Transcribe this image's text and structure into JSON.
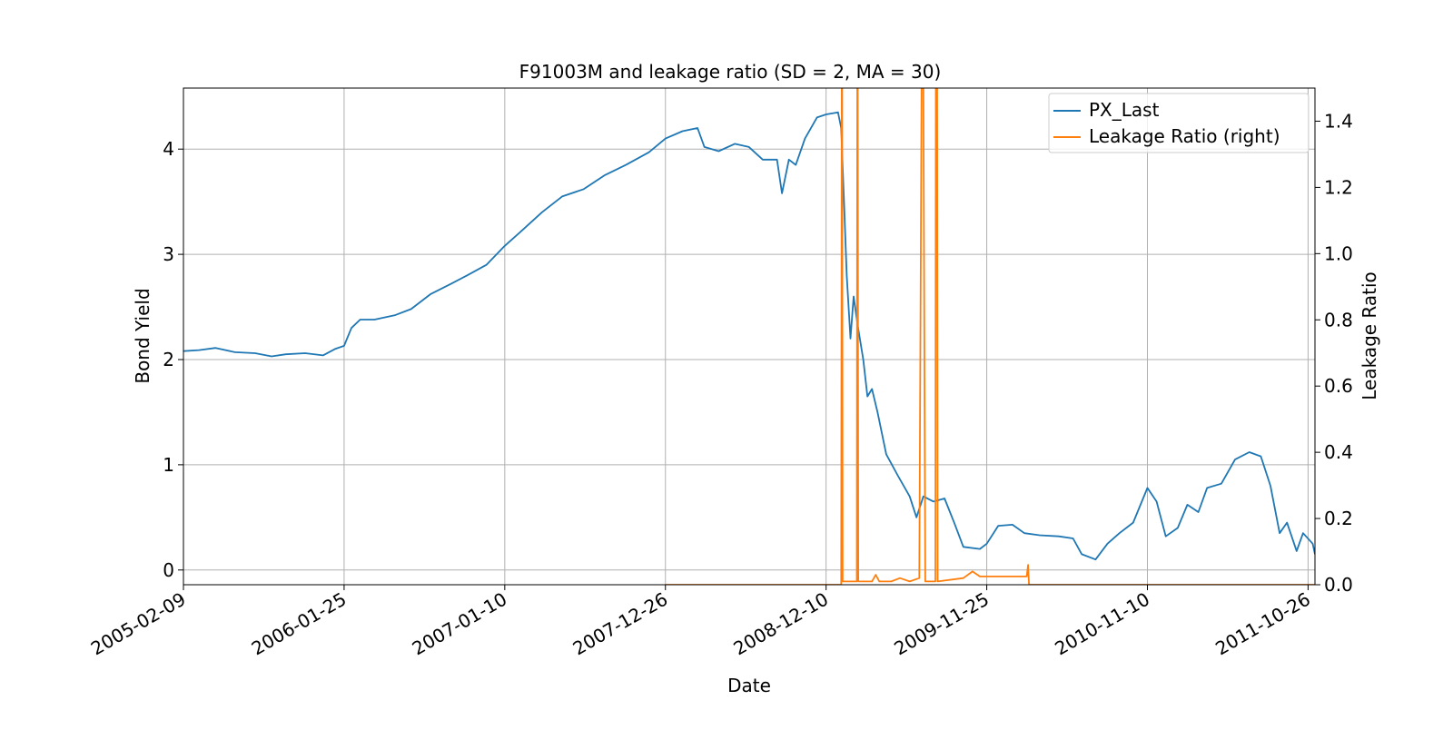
{
  "chart_data": {
    "type": "line",
    "title": "F91003M and leakage ratio (SD = 2, MA = 30)",
    "xlabel": "Date",
    "ylabel": "Bond Yield",
    "ylabel_right": "Leakage Ratio",
    "xlim": [
      "2005-02-09",
      "2011-11-10"
    ],
    "ylim": [
      -0.14,
      4.58
    ],
    "ylim_right": [
      0,
      1.5
    ],
    "x_ticks": [
      "2005-02-09",
      "2006-01-25",
      "2007-01-10",
      "2007-12-26",
      "2008-12-10",
      "2009-11-25",
      "2010-11-10",
      "2011-10-26"
    ],
    "y_ticks": [
      "0",
      "1",
      "2",
      "3",
      "4"
    ],
    "y_ticks_right": [
      "0.0",
      "0.2",
      "0.4",
      "0.6",
      "0.8",
      "1.0",
      "1.2",
      "1.4"
    ],
    "grid": true,
    "legend_position": "top-right",
    "series": [
      {
        "name": "PX_Last",
        "axis": "left",
        "color": "#1f77b4",
        "points": [
          [
            "2005-02-09",
            2.08
          ],
          [
            "2005-03-15",
            2.09
          ],
          [
            "2005-04-20",
            2.11
          ],
          [
            "2005-06-01",
            2.07
          ],
          [
            "2005-07-15",
            2.06
          ],
          [
            "2005-08-20",
            2.03
          ],
          [
            "2005-09-20",
            2.05
          ],
          [
            "2005-11-01",
            2.06
          ],
          [
            "2005-12-10",
            2.04
          ],
          [
            "2006-01-05",
            2.1
          ],
          [
            "2006-01-25",
            2.13
          ],
          [
            "2006-02-10",
            2.3
          ],
          [
            "2006-03-01",
            2.38
          ],
          [
            "2006-04-01",
            2.38
          ],
          [
            "2006-05-15",
            2.42
          ],
          [
            "2006-06-20",
            2.48
          ],
          [
            "2006-08-01",
            2.62
          ],
          [
            "2006-09-15",
            2.72
          ],
          [
            "2006-10-20",
            2.8
          ],
          [
            "2006-12-01",
            2.9
          ],
          [
            "2007-01-10",
            3.08
          ],
          [
            "2007-02-15",
            3.22
          ],
          [
            "2007-04-01",
            3.4
          ],
          [
            "2007-05-15",
            3.55
          ],
          [
            "2007-07-01",
            3.62
          ],
          [
            "2007-08-15",
            3.75
          ],
          [
            "2007-10-01",
            3.85
          ],
          [
            "2007-11-20",
            3.97
          ],
          [
            "2007-12-26",
            4.1
          ],
          [
            "2008-02-01",
            4.17
          ],
          [
            "2008-03-05",
            4.2
          ],
          [
            "2008-03-20",
            4.02
          ],
          [
            "2008-04-20",
            3.98
          ],
          [
            "2008-05-25",
            4.05
          ],
          [
            "2008-06-25",
            4.02
          ],
          [
            "2008-07-25",
            3.9
          ],
          [
            "2008-08-25",
            3.9
          ],
          [
            "2008-09-05",
            3.58
          ],
          [
            "2008-09-20",
            3.9
          ],
          [
            "2008-10-05",
            3.85
          ],
          [
            "2008-10-25",
            4.1
          ],
          [
            "2008-11-20",
            4.3
          ],
          [
            "2008-12-10",
            4.33
          ],
          [
            "2009-01-05",
            4.35
          ],
          [
            "2009-01-12",
            4.2
          ],
          [
            "2009-01-18",
            3.5
          ],
          [
            "2009-01-24",
            2.8
          ],
          [
            "2009-02-01",
            2.2
          ],
          [
            "2009-02-08",
            2.6
          ],
          [
            "2009-02-16",
            2.35
          ],
          [
            "2009-03-01",
            2.0
          ],
          [
            "2009-03-10",
            1.65
          ],
          [
            "2009-03-20",
            1.72
          ],
          [
            "2009-04-01",
            1.5
          ],
          [
            "2009-04-20",
            1.1
          ],
          [
            "2009-05-15",
            0.9
          ],
          [
            "2009-06-10",
            0.7
          ],
          [
            "2009-06-25",
            0.5
          ],
          [
            "2009-07-10",
            0.7
          ],
          [
            "2009-08-01",
            0.65
          ],
          [
            "2009-08-25",
            0.68
          ],
          [
            "2009-09-15",
            0.45
          ],
          [
            "2009-10-05",
            0.22
          ],
          [
            "2009-11-10",
            0.2
          ],
          [
            "2009-11-25",
            0.25
          ],
          [
            "2009-12-20",
            0.42
          ],
          [
            "2010-01-20",
            0.43
          ],
          [
            "2010-02-15",
            0.35
          ],
          [
            "2010-03-20",
            0.33
          ],
          [
            "2010-05-01",
            0.32
          ],
          [
            "2010-06-01",
            0.3
          ],
          [
            "2010-06-20",
            0.15
          ],
          [
            "2010-07-20",
            0.1
          ],
          [
            "2010-08-15",
            0.25
          ],
          [
            "2010-09-10",
            0.35
          ],
          [
            "2010-10-10",
            0.45
          ],
          [
            "2010-11-10",
            0.78
          ],
          [
            "2010-11-30",
            0.65
          ],
          [
            "2010-12-20",
            0.32
          ],
          [
            "2011-01-15",
            0.4
          ],
          [
            "2011-02-05",
            0.62
          ],
          [
            "2011-03-01",
            0.55
          ],
          [
            "2011-03-20",
            0.78
          ],
          [
            "2011-04-20",
            0.82
          ],
          [
            "2011-05-20",
            1.05
          ],
          [
            "2011-06-20",
            1.12
          ],
          [
            "2011-07-15",
            1.08
          ],
          [
            "2011-08-05",
            0.8
          ],
          [
            "2011-08-25",
            0.35
          ],
          [
            "2011-09-10",
            0.45
          ],
          [
            "2011-10-01",
            0.18
          ],
          [
            "2011-10-15",
            0.35
          ],
          [
            "2011-11-05",
            0.25
          ],
          [
            "2011-11-10",
            0.15
          ]
        ]
      },
      {
        "name": "Leakage Ratio (right)",
        "axis": "right",
        "color": "#ff7f0e",
        "points": [
          [
            "2007-12-26",
            0.0
          ],
          [
            "2009-01-12",
            0.0
          ],
          [
            "2009-01-13",
            1.5
          ],
          [
            "2009-01-14",
            1.5
          ],
          [
            "2009-01-15",
            0.01
          ],
          [
            "2009-02-15",
            0.01
          ],
          [
            "2009-02-16",
            1.5
          ],
          [
            "2009-02-17",
            1.5
          ],
          [
            "2009-02-18",
            0.01
          ],
          [
            "2009-03-20",
            0.01
          ],
          [
            "2009-03-28",
            0.03
          ],
          [
            "2009-04-05",
            0.01
          ],
          [
            "2009-05-01",
            0.01
          ],
          [
            "2009-05-20",
            0.02
          ],
          [
            "2009-06-10",
            0.01
          ],
          [
            "2009-07-01",
            0.02
          ],
          [
            "2009-07-06",
            1.5
          ],
          [
            "2009-07-10",
            1.5
          ],
          [
            "2009-07-14",
            0.01
          ],
          [
            "2009-08-05",
            0.01
          ],
          [
            "2009-08-06",
            1.5
          ],
          [
            "2009-08-09",
            1.5
          ],
          [
            "2009-08-10",
            0.01
          ],
          [
            "2009-10-05",
            0.02
          ],
          [
            "2009-10-25",
            0.04
          ],
          [
            "2009-11-10",
            0.025
          ],
          [
            "2010-01-05",
            0.025
          ],
          [
            "2010-02-20",
            0.025
          ],
          [
            "2010-02-23",
            0.06
          ],
          [
            "2010-02-25",
            0.0
          ],
          [
            "2011-11-10",
            0.0
          ]
        ]
      }
    ]
  }
}
